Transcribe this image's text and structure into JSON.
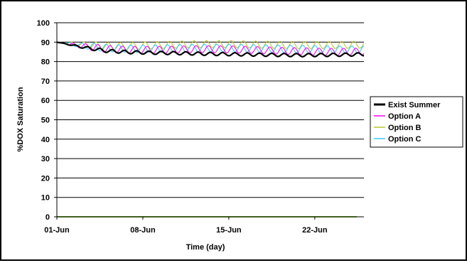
{
  "chart_data": {
    "type": "line",
    "title": "",
    "xlabel": "Time (day)",
    "ylabel": "%DOX Saturation",
    "x_tick_labels": [
      "01-Jun",
      "08-Jun",
      "15-Jun",
      "22-Jun"
    ],
    "x_tick_days": [
      0,
      7,
      14,
      21
    ],
    "xlim_days": [
      0,
      25
    ],
    "ylim": [
      0,
      100
    ],
    "y_ticks": [
      0,
      10,
      20,
      30,
      40,
      50,
      60,
      70,
      80,
      90,
      100
    ],
    "grid": "horizontal",
    "legend_position": "right",
    "series": [
      {
        "name": "Exist Summer",
        "color": "#000000",
        "x_days": [
          0,
          2,
          4,
          6,
          8,
          10,
          12,
          14,
          16,
          18,
          20,
          22,
          24,
          25
        ],
        "baseline": [
          90,
          87.5,
          85.5,
          84.8,
          84.5,
          84.3,
          84.0,
          83.8,
          83.6,
          83.4,
          83.3,
          83.4,
          83.6,
          83.8
        ],
        "amplitude": 0.8
      },
      {
        "name": "Option A",
        "color": "#ff00ff",
        "x_days": [
          0,
          2,
          4,
          6,
          8,
          10,
          12,
          14,
          16,
          18,
          20,
          22,
          24,
          25
        ],
        "baseline": [
          90,
          88.0,
          86.5,
          86.0,
          86.0,
          86.2,
          86.4,
          86.3,
          86.0,
          85.6,
          85.3,
          85.0,
          85.0,
          85.2
        ],
        "amplitude": 1.8
      },
      {
        "name": "Option B",
        "color": "#b8c830",
        "x_days": [
          0,
          2,
          4,
          6,
          8,
          10,
          12,
          14,
          16,
          18,
          20,
          22,
          24,
          25
        ],
        "baseline": [
          90,
          88.8,
          88.0,
          88.0,
          88.4,
          88.8,
          89.0,
          89.0,
          88.8,
          88.6,
          88.5,
          88.5,
          88.6,
          88.7
        ],
        "amplitude": 1.8
      },
      {
        "name": "Option C",
        "color": "#33ccff",
        "x_days": [
          0,
          2,
          4,
          6,
          8,
          10,
          12,
          14,
          16,
          18,
          20,
          22,
          24,
          25
        ],
        "baseline": [
          90,
          88.3,
          87.0,
          86.6,
          86.6,
          86.8,
          87.0,
          87.0,
          86.8,
          86.6,
          86.4,
          86.2,
          86.1,
          86.2
        ],
        "amplitude": 1.9
      }
    ],
    "zero_line": {
      "color": "#7fbf3f",
      "value": 0
    }
  }
}
